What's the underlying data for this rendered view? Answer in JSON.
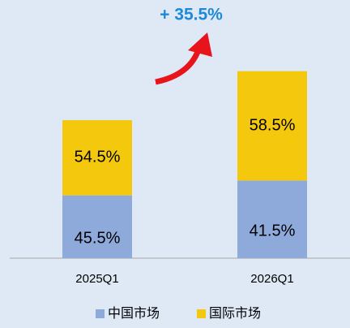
{
  "chart_data": {
    "type": "stacked_bar",
    "categories": [
      "2025Q1",
      "2026Q1"
    ],
    "series": [
      {
        "name": "中国市场",
        "color": "#8eaadb",
        "values": [
          45.5,
          41.5
        ],
        "value_labels": [
          "45.5%",
          "41.5%"
        ]
      },
      {
        "name": "国际市场",
        "color": "#f4c90d",
        "values": [
          54.5,
          58.5
        ],
        "value_labels": [
          "54.5%",
          "58.5%"
        ]
      }
    ],
    "annotation": {
      "text": "+ 35.5%",
      "value": 35.5
    }
  }
}
